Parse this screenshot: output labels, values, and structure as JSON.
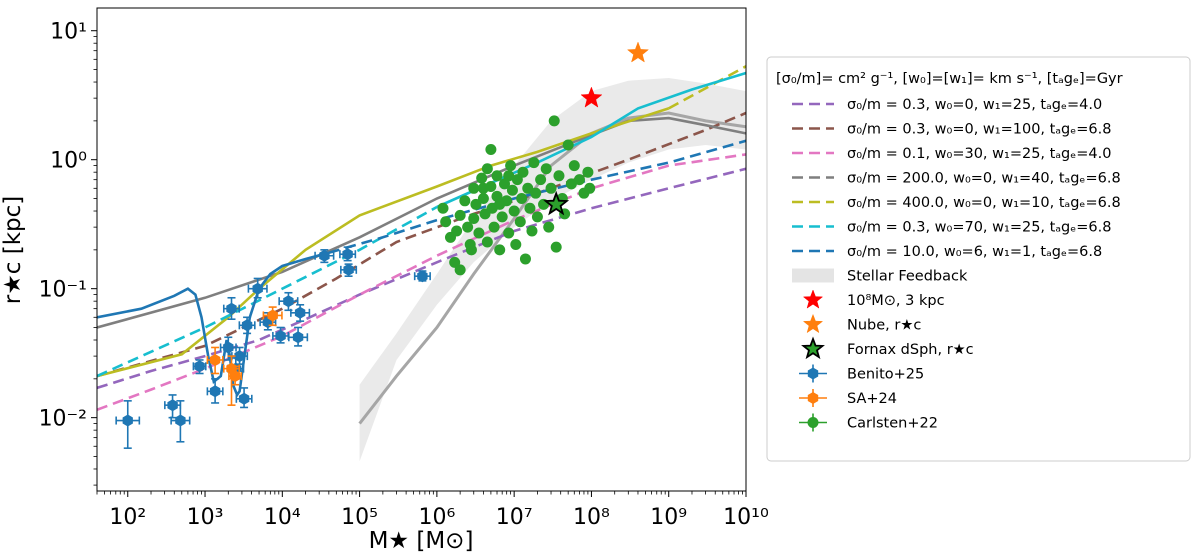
{
  "chart_data": {
    "type": "scatter",
    "title": "",
    "xlabel": "M★ [M⊙]",
    "ylabel": "r★c [kpc]",
    "xscale": "log",
    "yscale": "log",
    "xlim": [
      40,
      10000000000.0
    ],
    "ylim": [
      0.0027,
      15
    ],
    "x_ticks": [
      {
        "value": 100,
        "label": "10²"
      },
      {
        "value": 1000,
        "label": "10³"
      },
      {
        "value": 10000,
        "label": "10⁴"
      },
      {
        "value": 100000,
        "label": "10⁵"
      },
      {
        "value": 1000000,
        "label": "10⁶"
      },
      {
        "value": 10000000,
        "label": "10⁷"
      },
      {
        "value": 100000000,
        "label": "10⁸"
      },
      {
        "value": 1000000000,
        "label": "10⁹"
      },
      {
        "value": 10000000000,
        "label": "10¹⁰"
      }
    ],
    "y_ticks": [
      {
        "value": 0.01,
        "label": "10⁻²"
      },
      {
        "value": 0.1,
        "label": "10⁻¹"
      },
      {
        "value": 1,
        "label": "10⁰"
      },
      {
        "value": 10,
        "label": "10¹"
      }
    ],
    "legend": {
      "position": "outside-right",
      "header": "[σ₀/m]= cm² g⁻¹,  [w₀]=[w₁]= km s⁻¹, [tₐgₑ]=Gyr"
    },
    "model_series": [
      {
        "name": "σ₀/m =  0.3, w₀=0, w₁=25, tₐgₑ=4.0",
        "color": "#9467bd",
        "solid": [
          [
            40,
            0.017
          ],
          [
            200,
            0.023
          ],
          [
            1000,
            0.03
          ],
          [
            5000,
            0.04
          ],
          [
            20000,
            0.058
          ],
          [
            100000,
            0.09
          ],
          [
            1000000,
            0.16
          ],
          [
            10000000,
            0.28
          ],
          [
            100000000,
            0.42
          ],
          [
            1000000000,
            0.6
          ],
          [
            10000000000,
            0.85
          ]
        ],
        "dashed_from": 40
      },
      {
        "name": "σ₀/m =  0.3, w₀=0, w₁=100, tₐgₑ=6.8",
        "color": "#8c564b",
        "solid": [
          [
            40,
            0.021
          ],
          [
            1000,
            0.036
          ],
          [
            10000,
            0.07
          ],
          [
            50000,
            0.12
          ],
          [
            300000,
            0.23
          ],
          [
            3000000,
            0.38
          ],
          [
            20000000,
            0.55
          ],
          [
            300000000,
            1.0
          ],
          [
            3000000000,
            1.7
          ],
          [
            10000000000,
            2.3
          ]
        ],
        "dashed_from": 40
      },
      {
        "name": "σ₀/m =  0.1, w₀=30, w₁=25, tₐgₑ=4.0",
        "color": "#e377c2",
        "solid": [
          [
            40,
            0.0115
          ],
          [
            200,
            0.0165
          ],
          [
            1000,
            0.024
          ],
          [
            10000,
            0.043
          ],
          [
            100000,
            0.09
          ],
          [
            1000000,
            0.18
          ],
          [
            10000000,
            0.34
          ],
          [
            100000000,
            0.6
          ],
          [
            1000000000,
            0.9
          ],
          [
            10000000000,
            1.1
          ]
        ],
        "dashed_from": 40
      },
      {
        "name": "σ₀/m =  200.0, w₀=0, w₁=40, tₐgₑ=6.8",
        "color": "#7f7f7f",
        "solid": [
          [
            40,
            0.05
          ],
          [
            1000,
            0.085
          ],
          [
            10000,
            0.135
          ],
          [
            100000,
            0.25
          ],
          [
            1000000,
            0.5
          ],
          [
            10000000,
            0.9
          ],
          [
            100000000,
            1.55
          ],
          [
            300000000,
            2.0
          ],
          [
            1000000000,
            2.1
          ],
          [
            3000000000,
            1.85
          ],
          [
            10000000000,
            1.6
          ]
        ],
        "dashed_from": 1000000000000.0
      },
      {
        "name": "σ₀/m =  400.0, w₀=0, w₁=10, tₐgₑ=6.8",
        "color": "#bcbd22",
        "solid": [
          [
            40,
            0.021
          ],
          [
            500,
            0.031
          ],
          [
            2000,
            0.06
          ],
          [
            5000,
            0.1
          ],
          [
            20000,
            0.2
          ],
          [
            100000,
            0.37
          ],
          [
            1000000,
            0.62
          ],
          [
            5000000,
            0.9
          ],
          [
            20000000,
            1.15
          ],
          [
            100000000,
            1.6
          ],
          [
            1000000000,
            2.5
          ]
        ],
        "dashed": [
          [
            1000000000,
            2.5
          ],
          [
            10000000000,
            5.3
          ]
        ]
      },
      {
        "name": "σ₀/m =  0.3, w₀=70, w₁=25, tₐgₑ=6.8",
        "color": "#17becf",
        "solid": [
          [
            1000000,
            0.43
          ],
          [
            5000000,
            0.66
          ],
          [
            20000000,
            0.95
          ],
          [
            100000000,
            1.5
          ],
          [
            400000000,
            2.5
          ],
          [
            2000000000,
            3.5
          ],
          [
            10000000000,
            4.7
          ]
        ],
        "dashed": [
          [
            40,
            0.021
          ],
          [
            1000,
            0.05
          ],
          [
            10000,
            0.1
          ],
          [
            100000,
            0.2
          ],
          [
            1000000,
            0.43
          ]
        ]
      },
      {
        "name": "σ₀/m =  10.0, w₀=6, w₁=1, tₐgₑ=6.8",
        "color": "#1f77b4",
        "solid": [
          [
            40,
            0.06
          ],
          [
            150,
            0.07
          ],
          [
            400,
            0.088
          ],
          [
            600,
            0.1
          ],
          [
            750,
            0.09
          ],
          [
            900,
            0.06
          ],
          [
            1100,
            0.03
          ],
          [
            1300,
            0.019
          ],
          [
            1600,
            0.021
          ],
          [
            1900,
            0.04
          ],
          [
            2100,
            0.03
          ],
          [
            2300,
            0.018
          ],
          [
            2600,
            0.015
          ],
          [
            2800,
            0.016
          ],
          [
            3100,
            0.025
          ],
          [
            3800,
            0.06
          ],
          [
            5000,
            0.1
          ],
          [
            7000,
            0.13
          ],
          [
            10000,
            0.15
          ],
          [
            20000,
            0.17
          ],
          [
            40000,
            0.19
          ]
        ],
        "dashed": [
          [
            40000,
            0.19
          ],
          [
            200000,
            0.25
          ],
          [
            1000000,
            0.34
          ],
          [
            10000000,
            0.5
          ],
          [
            100000000,
            0.7
          ],
          [
            1000000000,
            0.95
          ],
          [
            10000000000,
            1.4
          ]
        ]
      }
    ],
    "stellar_feedback_band": {
      "name": "Stellar Feedback",
      "color": "#d9d9d9",
      "upper": [
        [
          100000,
          0.018
        ],
        [
          300000,
          0.045
        ],
        [
          1000000,
          0.13
        ],
        [
          3000000,
          0.35
        ],
        [
          10000000,
          0.9
        ],
        [
          30000000,
          2.0
        ],
        [
          100000000,
          3.4
        ],
        [
          300000000,
          4.1
        ],
        [
          1000000000,
          4.3
        ],
        [
          3000000000,
          3.9
        ],
        [
          10000000000,
          3.4
        ]
      ],
      "lower": [
        [
          10000000000,
          1.2
        ],
        [
          3000000000,
          1.3
        ],
        [
          1000000000,
          1.2
        ],
        [
          300000000,
          0.95
        ],
        [
          100000000,
          0.7
        ],
        [
          30000000,
          0.48
        ],
        [
          10000000,
          0.3
        ],
        [
          3000000,
          0.16
        ],
        [
          1000000,
          0.075
        ],
        [
          300000,
          0.028
        ],
        [
          100000,
          0.0046
        ]
      ],
      "median": [
        [
          100000,
          0.009
        ],
        [
          300000,
          0.021
        ],
        [
          1000000,
          0.05
        ],
        [
          3000000,
          0.13
        ],
        [
          10000000,
          0.35
        ],
        [
          30000000,
          0.9
        ],
        [
          100000000,
          1.6
        ],
        [
          300000000,
          2.1
        ],
        [
          1000000000,
          2.3
        ],
        [
          3000000000,
          2.0
        ],
        [
          10000000000,
          1.8
        ]
      ]
    },
    "markers": [
      {
        "name": "10⁸M⊙, 3 kpc",
        "x": 100000000,
        "y": 3.0,
        "color": "#ff0000",
        "edge": "#ff0000"
      },
      {
        "name": "Nube, r★c",
        "x": 400000000,
        "y": 6.7,
        "color": "#ff7f0e",
        "edge": "#ff7f0e"
      },
      {
        "name": "Fornax dSph, r★c",
        "x": 35000000,
        "y": 0.45,
        "color": "#2ca02c",
        "edge": "#000000"
      }
    ],
    "data_series": [
      {
        "name": "Benito+25",
        "color": "#1f77b4",
        "points": [
          {
            "x": 100,
            "y": 0.0095,
            "xerr": 0.15,
            "ylo": 0.0058,
            "yhi": 0.0135
          },
          {
            "x": 380,
            "y": 0.0125,
            "xerr": 0.1,
            "ylo": 0.01,
            "yhi": 0.015
          },
          {
            "x": 480,
            "y": 0.0095,
            "xerr": 0.12,
            "ylo": 0.0065,
            "yhi": 0.0135
          },
          {
            "x": 850,
            "y": 0.025,
            "xerr": 0.08,
            "ylo": 0.022,
            "yhi": 0.028
          },
          {
            "x": 1350,
            "y": 0.016,
            "xerr": 0.1,
            "ylo": 0.013,
            "yhi": 0.02
          },
          {
            "x": 2000,
            "y": 0.035,
            "xerr": 0.1,
            "ylo": 0.028,
            "yhi": 0.042
          },
          {
            "x": 2200,
            "y": 0.07,
            "xerr": 0.1,
            "ylo": 0.058,
            "yhi": 0.085
          },
          {
            "x": 2500,
            "y": 0.024,
            "xerr": 0.1,
            "ylo": 0.02,
            "yhi": 0.029
          },
          {
            "x": 2800,
            "y": 0.03,
            "xerr": 0.1,
            "ylo": 0.026,
            "yhi": 0.035
          },
          {
            "x": 3200,
            "y": 0.014,
            "xerr": 0.1,
            "ylo": 0.012,
            "yhi": 0.017
          },
          {
            "x": 3500,
            "y": 0.052,
            "xerr": 0.1,
            "ylo": 0.045,
            "yhi": 0.06
          },
          {
            "x": 4800,
            "y": 0.1,
            "xerr": 0.12,
            "ylo": 0.085,
            "yhi": 0.12
          },
          {
            "x": 6500,
            "y": 0.055,
            "xerr": 0.1,
            "ylo": 0.048,
            "yhi": 0.065
          },
          {
            "x": 9500,
            "y": 0.043,
            "xerr": 0.1,
            "ylo": 0.038,
            "yhi": 0.05
          },
          {
            "x": 12000,
            "y": 0.08,
            "xerr": 0.12,
            "ylo": 0.068,
            "yhi": 0.093
          },
          {
            "x": 16000,
            "y": 0.042,
            "xerr": 0.12,
            "ylo": 0.036,
            "yhi": 0.05
          },
          {
            "x": 17000,
            "y": 0.065,
            "xerr": 0.12,
            "ylo": 0.056,
            "yhi": 0.075
          },
          {
            "x": 35000,
            "y": 0.18,
            "xerr": 0.12,
            "ylo": 0.16,
            "yhi": 0.2
          },
          {
            "x": 70000,
            "y": 0.185,
            "xerr": 0.1,
            "ylo": 0.165,
            "yhi": 0.21
          },
          {
            "x": 72000,
            "y": 0.14,
            "xerr": 0.1,
            "ylo": 0.125,
            "yhi": 0.155
          },
          {
            "x": 650000,
            "y": 0.125,
            "xerr": 0.1,
            "ylo": 0.115,
            "yhi": 0.137
          }
        ]
      },
      {
        "name": "SA+24",
        "color": "#ff7f0e",
        "points": [
          {
            "x": 1350,
            "y": 0.028,
            "xerr": 0.1,
            "ylo": 0.022,
            "yhi": 0.035
          },
          {
            "x": 2200,
            "y": 0.024,
            "xerr": 0.1,
            "ylo": 0.0125,
            "yhi": 0.03
          },
          {
            "x": 2450,
            "y": 0.021,
            "xerr": 0.08,
            "ylo": 0.018,
            "yhi": 0.025
          },
          {
            "x": 7500,
            "y": 0.062,
            "xerr": 0.12,
            "ylo": 0.052,
            "yhi": 0.072
          }
        ]
      },
      {
        "name": "Carlsten+22",
        "color": "#2ca02c",
        "points": [
          {
            "x": 1200000,
            "y": 0.42
          },
          {
            "x": 1300000,
            "y": 0.33
          },
          {
            "x": 1500000,
            "y": 0.25
          },
          {
            "x": 1700000,
            "y": 0.16
          },
          {
            "x": 1800000,
            "y": 0.28
          },
          {
            "x": 2000000,
            "y": 0.37
          },
          {
            "x": 2000000,
            "y": 0.14
          },
          {
            "x": 2300000,
            "y": 0.48
          },
          {
            "x": 2500000,
            "y": 0.3
          },
          {
            "x": 2700000,
            "y": 0.22
          },
          {
            "x": 3000000,
            "y": 0.6
          },
          {
            "x": 3000000,
            "y": 0.35
          },
          {
            "x": 3200000,
            "y": 0.45
          },
          {
            "x": 3500000,
            "y": 0.27
          },
          {
            "x": 3800000,
            "y": 0.72
          },
          {
            "x": 4000000,
            "y": 0.5
          },
          {
            "x": 4200000,
            "y": 0.38
          },
          {
            "x": 4500000,
            "y": 0.85
          },
          {
            "x": 4500000,
            "y": 0.23
          },
          {
            "x": 5000000,
            "y": 1.2
          },
          {
            "x": 5000000,
            "y": 0.62
          },
          {
            "x": 5200000,
            "y": 0.42
          },
          {
            "x": 5500000,
            "y": 0.3
          },
          {
            "x": 6000000,
            "y": 0.75
          },
          {
            "x": 6000000,
            "y": 0.52
          },
          {
            "x": 6500000,
            "y": 0.2
          },
          {
            "x": 7000000,
            "y": 0.36
          },
          {
            "x": 7500000,
            "y": 0.65
          },
          {
            "x": 8000000,
            "y": 0.48
          },
          {
            "x": 8500000,
            "y": 0.27
          },
          {
            "x": 9000000,
            "y": 0.9
          },
          {
            "x": 9500000,
            "y": 0.58
          },
          {
            "x": 10000000,
            "y": 0.4
          },
          {
            "x": 10500000,
            "y": 0.22
          },
          {
            "x": 11000000,
            "y": 0.7
          },
          {
            "x": 12000000,
            "y": 0.33
          },
          {
            "x": 12500000,
            "y": 0.5
          },
          {
            "x": 13000000,
            "y": 0.8
          },
          {
            "x": 14000000,
            "y": 0.17
          },
          {
            "x": 15000000,
            "y": 0.6
          },
          {
            "x": 16000000,
            "y": 0.42
          },
          {
            "x": 17000000,
            "y": 0.28
          },
          {
            "x": 18000000,
            "y": 0.95
          },
          {
            "x": 19000000,
            "y": 0.55
          },
          {
            "x": 20000000,
            "y": 0.36
          },
          {
            "x": 22000000,
            "y": 0.7
          },
          {
            "x": 24000000,
            "y": 0.45
          },
          {
            "x": 26000000,
            "y": 0.85
          },
          {
            "x": 28000000,
            "y": 0.3
          },
          {
            "x": 30000000,
            "y": 0.6
          },
          {
            "x": 33000000,
            "y": 2.0
          },
          {
            "x": 35000000,
            "y": 0.21
          },
          {
            "x": 38000000,
            "y": 0.75
          },
          {
            "x": 42000000,
            "y": 0.5
          },
          {
            "x": 45000000,
            "y": 0.38
          },
          {
            "x": 50000000,
            "y": 1.3
          },
          {
            "x": 55000000,
            "y": 0.65
          },
          {
            "x": 60000000,
            "y": 0.9
          },
          {
            "x": 70000000,
            "y": 0.7
          },
          {
            "x": 80000000,
            "y": 0.55
          },
          {
            "x": 90000000,
            "y": 0.8
          },
          {
            "x": 95000000,
            "y": 0.6
          },
          {
            "x": 4000000,
            "y": 0.6
          },
          {
            "x": 2800000,
            "y": 0.2
          },
          {
            "x": 6500000,
            "y": 0.45
          },
          {
            "x": 8500000,
            "y": 0.75
          }
        ]
      }
    ]
  }
}
